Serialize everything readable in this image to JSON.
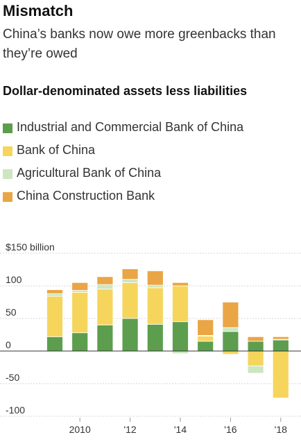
{
  "title": "Mismatch",
  "subtitle": "China’s banks now owe more greenbacks than they’re owed",
  "colors": {
    "icbc": "#5c9e4e",
    "boc": "#f6d55c",
    "abc": "#cce6c2",
    "ccb": "#eaa544"
  },
  "chart_data": {
    "type": "bar",
    "stacked": true,
    "title": "Dollar-denominated assets less liabilities",
    "y_unit_label": "$150 billion",
    "ylim": [
      -100,
      150
    ],
    "y_ticks": [
      150,
      100,
      50,
      0,
      -50,
      -100
    ],
    "y_tick_labels": [
      "$150 billion",
      "100",
      "50",
      "0",
      "-50",
      "-100"
    ],
    "categories": [
      "2009",
      "2010",
      "2011",
      "2012",
      "2013",
      "2014",
      "2015",
      "2016",
      "2017",
      "2018"
    ],
    "x_tick_labels": [
      {
        "category": "2010",
        "label": "2010"
      },
      {
        "category": "2012",
        "label": "'12"
      },
      {
        "category": "2014",
        "label": "'14"
      },
      {
        "category": "2016",
        "label": "'16"
      },
      {
        "category": "2018",
        "label": "'18"
      }
    ],
    "grid": true,
    "legend_position": "top-left",
    "series": [
      {
        "name": "Industrial and Commercial Bank of China",
        "color_key": "icbc",
        "values": [
          22,
          28,
          40,
          50,
          41,
          45,
          15,
          30,
          15,
          17
        ]
      },
      {
        "name": "Bank of China",
        "color_key": "boc",
        "values": [
          62,
          62,
          55,
          55,
          56,
          55,
          8,
          -5,
          -23,
          -72
        ]
      },
      {
        "name": "Agricultural Bank of China",
        "color_key": "abc",
        "values": [
          4,
          3,
          7,
          5,
          4,
          -4,
          1,
          6,
          -11,
          1
        ]
      },
      {
        "name": "China Construction Bank",
        "color_key": "ccb",
        "values": [
          6,
          12,
          12,
          16,
          22,
          5,
          24,
          39,
          7,
          4
        ]
      }
    ]
  }
}
